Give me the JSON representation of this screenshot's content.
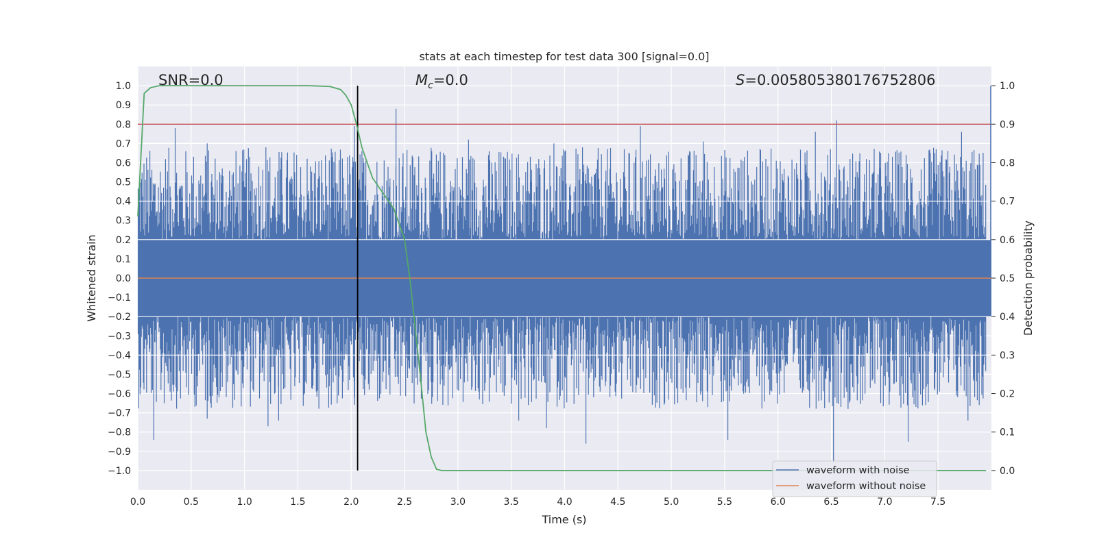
{
  "chart_data": {
    "type": "line",
    "title": "stats at each timestep for test data 300 [signal=0.0]",
    "xlabel": "Time (s)",
    "ylabel": "Whitened strain",
    "ylabel_right": "Detection probability",
    "xlim": [
      0.0,
      8.0
    ],
    "ylim": [
      -1.1,
      1.1
    ],
    "ylim_right": [
      -0.05,
      1.05
    ],
    "x_ticks": [
      "0.0",
      "0.5",
      "1.0",
      "1.5",
      "2.0",
      "2.5",
      "3.0",
      "3.5",
      "4.0",
      "4.5",
      "5.0",
      "5.5",
      "6.0",
      "6.5",
      "7.0",
      "7.5"
    ],
    "y_ticks": [
      "1.0",
      "0.9",
      "0.8",
      "0.7",
      "0.6",
      "0.5",
      "0.4",
      "0.3",
      "0.2",
      "0.1",
      "0.0",
      "-0.1",
      "-0.2",
      "-0.3",
      "-0.4",
      "-0.5",
      "-0.6",
      "-0.7",
      "-0.8",
      "-0.9",
      "-1.0"
    ],
    "y_ticks_right": [
      "1.0",
      "0.9",
      "0.8",
      "0.7",
      "0.6",
      "0.5",
      "0.4",
      "0.3",
      "0.2",
      "0.1",
      "0.0"
    ],
    "grid": true,
    "annotations": {
      "snr": "SNR=0.0",
      "mc_symbol": "M",
      "mc_sub": "c",
      "mc_value": "=0.0",
      "s_symbol": "S",
      "s_value": "=0.005805380176752806"
    },
    "threshold_line": {
      "y": 0.8,
      "color": "#c44e52"
    },
    "marker_line": {
      "x": 2.06,
      "color": "#000000"
    },
    "series": [
      {
        "name": "waveform with noise",
        "color": "#4c72b0",
        "envelope_amplitude": 0.2,
        "peaks_positive": [
          [
            0.35,
            0.78
          ],
          [
            2.03,
            0.79
          ],
          [
            2.42,
            0.88
          ],
          [
            4.71,
            0.79
          ],
          [
            6.55,
            0.82
          ],
          [
            6.35,
            0.76
          ],
          [
            7.72,
            0.76
          ],
          [
            0.65,
            0.7
          ],
          [
            1.2,
            0.68
          ],
          [
            3.1,
            0.72
          ],
          [
            3.9,
            0.7
          ],
          [
            5.3,
            0.71
          ]
        ],
        "peaks_negative": [
          [
            0.15,
            -0.84
          ],
          [
            1.22,
            -0.77
          ],
          [
            1.32,
            -0.74
          ],
          [
            3.83,
            -0.78
          ],
          [
            4.2,
            -0.86
          ],
          [
            5.53,
            -0.84
          ],
          [
            6.52,
            -0.96
          ],
          [
            7.22,
            -0.85
          ],
          [
            7.78,
            -0.74
          ],
          [
            0.65,
            -0.73
          ],
          [
            3.57,
            -0.74
          ],
          [
            2.03,
            -0.62
          ]
        ]
      },
      {
        "name": "waveform without noise",
        "color": "#dd8452",
        "constant": 0.0
      },
      {
        "name": "detection probability",
        "color": "#55a868",
        "axis": "right",
        "x": [
          0.0,
          0.06,
          0.12,
          0.2,
          0.4,
          0.8,
          1.2,
          1.6,
          1.8,
          1.9,
          1.95,
          2.0,
          2.05,
          2.1,
          2.15,
          2.2,
          2.3,
          2.4,
          2.5,
          2.55,
          2.6,
          2.65,
          2.7,
          2.75,
          2.8,
          2.85,
          2.9,
          3.0,
          4.0,
          5.0,
          6.0,
          7.0,
          7.95
        ],
        "y": [
          0.66,
          0.98,
          0.995,
          1.0,
          1.0,
          1.0,
          1.0,
          1.0,
          0.998,
          0.99,
          0.975,
          0.95,
          0.9,
          0.84,
          0.8,
          0.76,
          0.72,
          0.68,
          0.6,
          0.5,
          0.37,
          0.24,
          0.1,
          0.035,
          0.003,
          0.0,
          0.0,
          0.0,
          0.0,
          0.0,
          0.0,
          0.0,
          0.0
        ]
      }
    ],
    "legend": {
      "position": "lower-right",
      "entries": [
        {
          "label": "waveform with noise",
          "color": "#4c72b0"
        },
        {
          "label": "waveform without noise",
          "color": "#dd8452"
        }
      ]
    }
  }
}
